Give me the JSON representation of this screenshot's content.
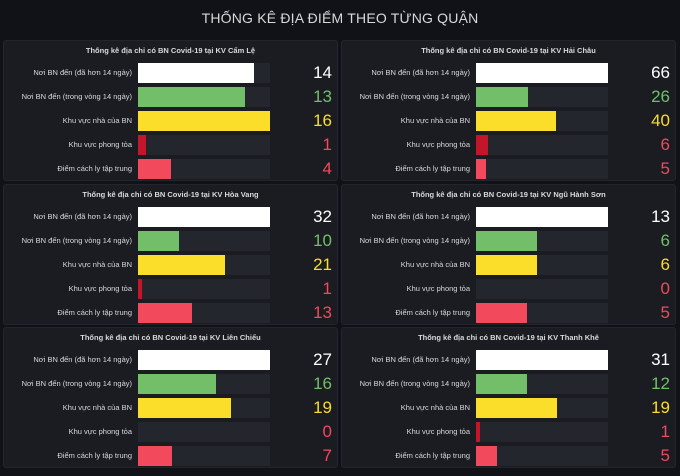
{
  "page_title": "THỐNG KÊ ĐỊA ĐIỂM THEO TỪNG QUẬN",
  "categories": [
    "Nơi BN đến (đã hơn 14 ngày)",
    "Nơi BN đến (trong vòng 14 ngày)",
    "Khu vực nhà của BN",
    "Khu vực phong tỏa",
    "Điểm cách ly tập trung"
  ],
  "colors": {
    "fills": [
      "#ffffff",
      "#73bf69",
      "#fade2a",
      "#c4162a",
      "#f2495c"
    ],
    "texts": [
      "#ffffff",
      "#73bf69",
      "#fade2a",
      "#f2495c",
      "#f2495c"
    ]
  },
  "chart_data": [
    {
      "type": "bar",
      "title": "Thống kê địa chỉ có BN Covid-19 tại KV Cẩm Lệ",
      "values": [
        14,
        13,
        16,
        1,
        4
      ]
    },
    {
      "type": "bar",
      "title": "Thống kê địa chỉ có BN Covid-19 tại KV Hải Châu",
      "values": [
        66,
        26,
        40,
        6,
        5
      ]
    },
    {
      "type": "bar",
      "title": "Thống kê địa chỉ có BN Covid-19 tại KV Hòa Vang",
      "values": [
        32,
        10,
        21,
        1,
        13
      ]
    },
    {
      "type": "bar",
      "title": "Thống kê địa chỉ có BN Covid-19 tại KV Ngũ Hành Sơn",
      "values": [
        13,
        6,
        6,
        0,
        5
      ]
    },
    {
      "type": "bar",
      "title": "Thống kê địa chỉ có BN Covid-19 tại KV Liên Chiểu",
      "values": [
        27,
        16,
        19,
        0,
        7
      ]
    },
    {
      "type": "bar",
      "title": "Thống kê địa chỉ có BN Covid-19 tại KV Thanh Khê",
      "values": [
        31,
        12,
        19,
        1,
        5
      ]
    }
  ]
}
